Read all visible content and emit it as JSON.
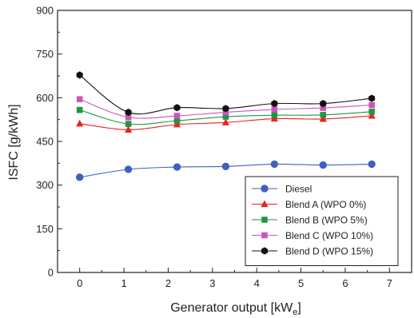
{
  "chart_data": {
    "type": "line",
    "xlabel": "Generator output [kW",
    "xlabel_subscript": "e",
    "xlabel_suffix": "]",
    "ylabel": "ISFC [g/kWh]",
    "xlim": [
      -0.5,
      7.5
    ],
    "ylim": [
      0,
      900
    ],
    "x_ticks": [
      0,
      1,
      2,
      3,
      4,
      5,
      6,
      7
    ],
    "y_ticks": [
      0,
      150,
      300,
      450,
      600,
      750,
      900
    ],
    "grid": false,
    "legend_position": "bottom-right",
    "x": [
      0,
      1.1,
      2.2,
      3.3,
      4.4,
      5.5,
      6.6
    ],
    "series": [
      {
        "name": "Diesel",
        "color": "#4060c0",
        "marker": "circle",
        "values": [
          327,
          354,
          362,
          364,
          372,
          369,
          372
        ]
      },
      {
        "name": "Blend A (WPO 0%)",
        "color": "#ee2020",
        "marker": "triangle",
        "values": [
          511,
          490,
          508,
          515,
          528,
          527,
          538
        ]
      },
      {
        "name": "Blend B (WPO 5%)",
        "color": "#209640",
        "marker": "square",
        "values": [
          558,
          510,
          521,
          535,
          540,
          541,
          552
        ]
      },
      {
        "name": "Blend C (WPO 10%)",
        "color": "#cc55bb",
        "marker": "square",
        "values": [
          595,
          533,
          538,
          550,
          560,
          565,
          575
        ]
      },
      {
        "name": "Blend D (WPO 15%)",
        "color": "#111111",
        "marker": "hexagon",
        "values": [
          678,
          550,
          566,
          563,
          580,
          580,
          598
        ]
      }
    ]
  }
}
